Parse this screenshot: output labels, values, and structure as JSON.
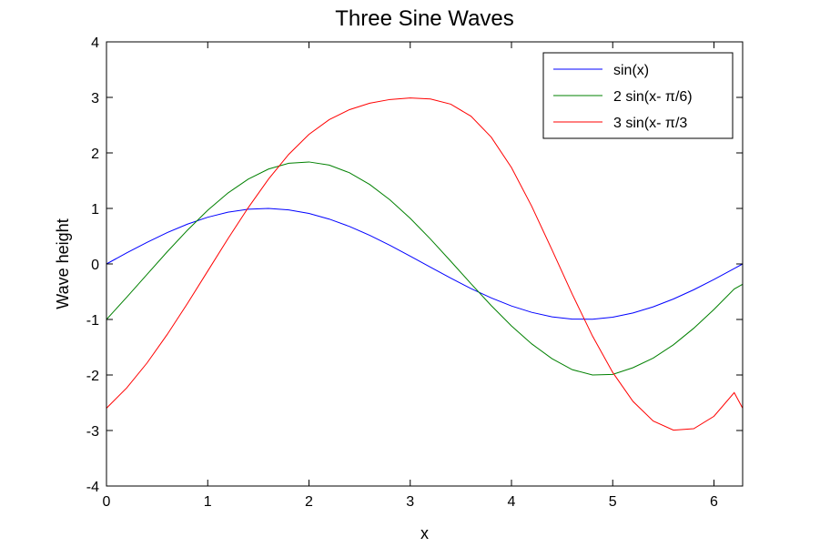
{
  "chart_data": {
    "type": "line",
    "title": "Three Sine Waves",
    "xlabel": "x",
    "ylabel": "Wave height",
    "xlim": [
      0,
      6.2832
    ],
    "ylim": [
      -4,
      4
    ],
    "xticks": [
      0,
      1,
      2,
      3,
      4,
      5,
      6
    ],
    "yticks": [
      -4,
      -3,
      -2,
      -1,
      0,
      1,
      2,
      3,
      4
    ],
    "x_tick_labels": [
      "0",
      "1",
      "2",
      "3",
      "4",
      "5",
      "6"
    ],
    "y_tick_labels": [
      "-4",
      "-3",
      "-2",
      "-1",
      "0",
      "1",
      "2",
      "3",
      "4"
    ],
    "grid": false,
    "legend_position": "top-right",
    "x": [
      0,
      0.2,
      0.4,
      0.6,
      0.8,
      1.0,
      1.2,
      1.4,
      1.6,
      1.8,
      2.0,
      2.2,
      2.4,
      2.6,
      2.8,
      3.0,
      3.2,
      3.4,
      3.6,
      3.8,
      4.0,
      4.2,
      4.4,
      4.6,
      4.8,
      5.0,
      5.2,
      5.4,
      5.6,
      5.8,
      6.0,
      6.2,
      6.2832
    ],
    "series": [
      {
        "name": "sin(x)",
        "color": "#0000ff",
        "values": [
          0,
          0.199,
          0.389,
          0.565,
          0.717,
          0.841,
          0.932,
          0.985,
          1.0,
          0.974,
          0.909,
          0.808,
          0.675,
          0.516,
          0.335,
          0.141,
          -0.058,
          -0.256,
          -0.443,
          -0.612,
          -0.757,
          -0.872,
          -0.952,
          -0.994,
          -0.996,
          -0.959,
          -0.883,
          -0.773,
          -0.631,
          -0.465,
          -0.279,
          -0.083,
          0
        ]
      },
      {
        "name": "2 sin(x- π/6)",
        "color": "#008000",
        "values": [
          -1.0,
          -0.6,
          -0.189,
          0.219,
          0.609,
          0.967,
          1.278,
          1.528,
          1.709,
          1.814,
          1.837,
          1.78,
          1.643,
          1.431,
          1.154,
          0.822,
          0.448,
          0.049,
          -0.356,
          -0.75,
          -1.117,
          -1.44,
          -1.706,
          -1.904,
          -2.0,
          -1.989,
          -1.869,
          -1.696,
          -1.456,
          -1.159,
          -0.82,
          -0.452,
          -0.366
        ]
      },
      {
        "name": "3 sin(x- π/3",
        "color": "#ff0000",
        "values": [
          -2.598,
          -2.233,
          -1.785,
          -1.27,
          -0.711,
          -0.128,
          0.455,
          1.014,
          1.527,
          1.974,
          2.334,
          2.599,
          2.779,
          2.895,
          2.962,
          2.989,
          2.972,
          2.878,
          2.661,
          2.284,
          1.735,
          1.038,
          0.255,
          -0.544,
          -1.298,
          -1.954,
          -2.476,
          -2.829,
          -2.994,
          -2.968,
          -2.744,
          -2.318,
          -2.598
        ]
      }
    ]
  }
}
